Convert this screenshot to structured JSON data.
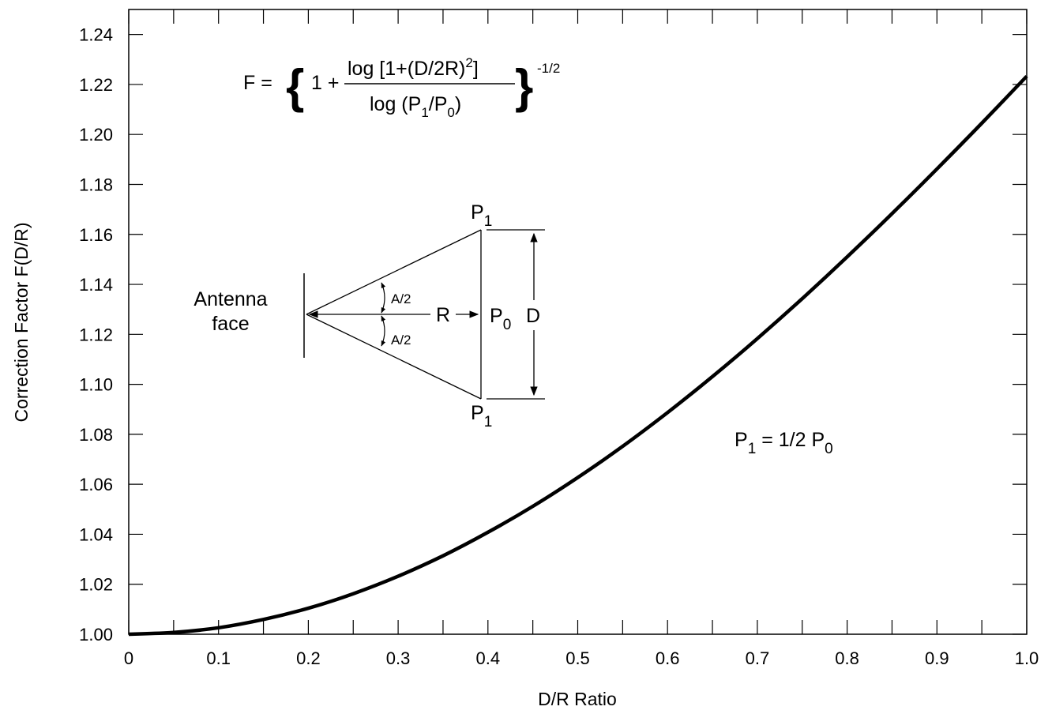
{
  "chart_data": {
    "type": "line",
    "title": "",
    "xlabel": "D/R Ratio",
    "ylabel": "Correction Factor F(D/R)",
    "xlim": [
      0,
      1.0
    ],
    "ylim": [
      1.0,
      1.25
    ],
    "x_ticks": [
      "0",
      "0.1",
      "0.2",
      "0.3",
      "0.4",
      "0.5",
      "0.6",
      "0.7",
      "0.8",
      "0.9",
      "1.0"
    ],
    "y_ticks": [
      "1.00",
      "1.02",
      "1.04",
      "1.06",
      "1.08",
      "1.10",
      "1.12",
      "1.14",
      "1.16",
      "1.18",
      "1.20",
      "1.22",
      "1.24"
    ],
    "grid": false,
    "series": [
      {
        "name": "P1 = 1/2 P0",
        "x": [
          0,
          0.05,
          0.1,
          0.15,
          0.2,
          0.25,
          0.3,
          0.35,
          0.4,
          0.45,
          0.5,
          0.55,
          0.6,
          0.65,
          0.7,
          0.75,
          0.8,
          0.85,
          0.9,
          0.95,
          1.0
        ],
        "y": [
          1.0,
          1.0007,
          1.0026,
          1.0059,
          1.0104,
          1.0162,
          1.0232,
          1.0314,
          1.0408,
          1.0512,
          1.0627,
          1.0752,
          1.0887,
          1.1031,
          1.1183,
          1.1343,
          1.151,
          1.1683,
          1.1862,
          1.2045,
          1.2233
        ]
      }
    ]
  },
  "annotations": {
    "formula": {
      "lhs": "F = ",
      "open_brace": "{",
      "one_plus": "1 + ",
      "num_a": "log [1+(D/2R)",
      "num_sup": "2",
      "num_b": "]",
      "den_a": "log (P",
      "den_sub1": "1",
      "den_mid": "/P",
      "den_sub0": "0",
      "den_end": ")",
      "close_brace": "}",
      "exponent": "-1/2"
    },
    "diagram": {
      "antenna_line1": "Antenna",
      "antenna_line2": "face",
      "p": "P",
      "sub1": "1",
      "sub0": "0",
      "half_angle": "A/2",
      "radius": "R",
      "distance": "D"
    },
    "curve_label": {
      "p": "P",
      "sub1": "1",
      "mid": " = 1/2 P",
      "sub0": "0"
    }
  }
}
